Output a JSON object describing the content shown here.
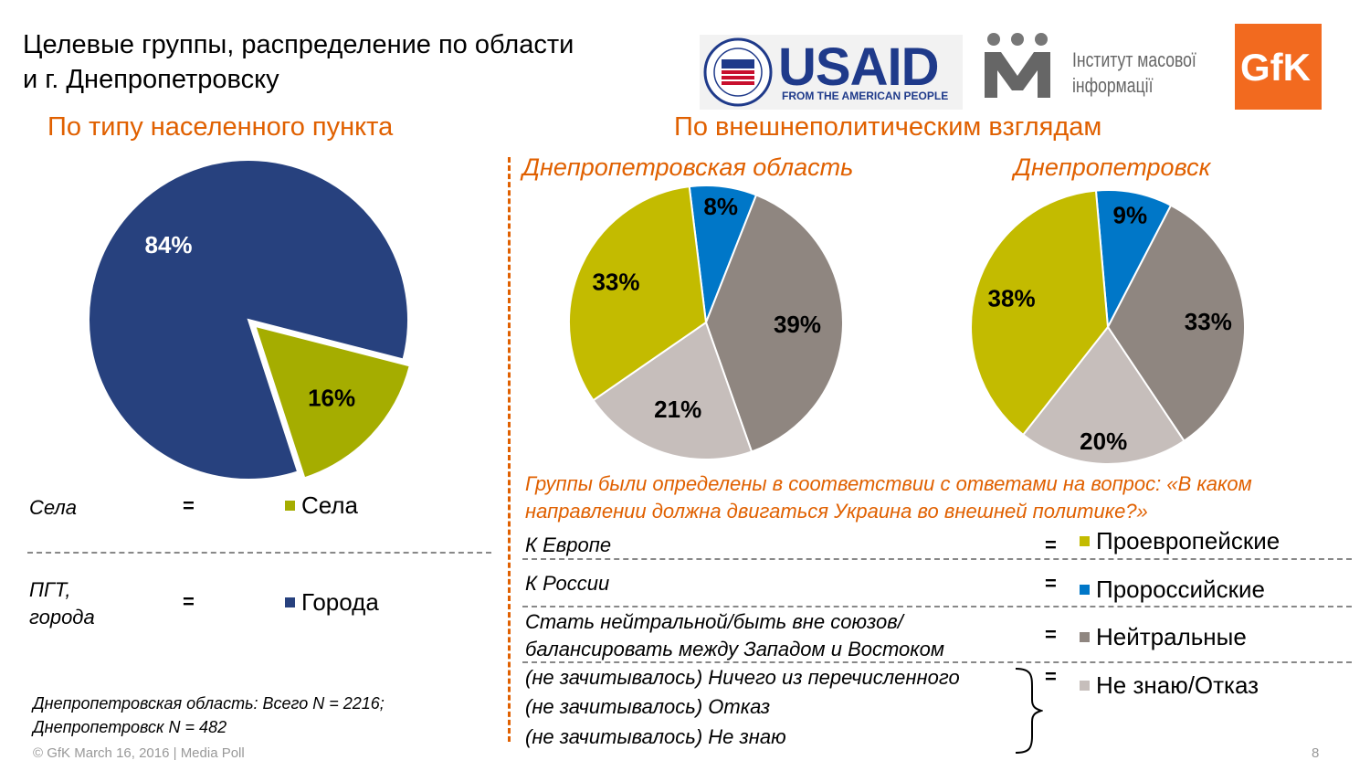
{
  "title": "Целевые группы, распределение по области\nи г. Днепропетровску",
  "logos": {
    "usaid_word": "USAID",
    "usaid_tagline": "FROM THE AMERICAN PEOPLE",
    "imi_text": "Інститут масової\nінформації",
    "gfk_word": "GfK"
  },
  "sections": {
    "left": "По типу населенного пункта",
    "right": "По внешнеполитическим взглядам",
    "oblast": "Днепропетровская область",
    "city": "Днепропетровск"
  },
  "colors": {
    "accent": "#e06000",
    "cities": "#27417e",
    "villages": "#a5ad00",
    "pro_europe": "#c3bb00",
    "pro_russia": "#0077c8",
    "neutral": "#8f8680",
    "dont_know": "#c6bebb"
  },
  "left_legend": [
    {
      "label": "Села",
      "eq": "=",
      "legend": "Села",
      "color": "#a5ad00"
    },
    {
      "label": "ПГТ,\nгорода",
      "eq": "=",
      "legend": "Города",
      "color": "#27417e"
    }
  ],
  "question": "Группы были определены в соответствии с ответами на вопрос: «В каком направлении должна двигаться Украина во внешней политике?»",
  "right_legend": [
    {
      "label": "К Европе",
      "eq": "=",
      "legend": "Проевропейские",
      "color": "#c3bb00"
    },
    {
      "label": "К России",
      "eq": "=",
      "legend": "Пророссийские",
      "color": "#0077c8"
    },
    {
      "label": "Стать нейтральной/быть вне союзов/\nбалансировать между Западом и Востоком",
      "eq": "=",
      "legend": "Нейтральные",
      "color": "#8f8680"
    },
    {
      "label": "(не зачитывалось) Ничего из перечисленного",
      "eq": "=",
      "legend": "Не знаю/Отказ",
      "color": "#c6bebb"
    }
  ],
  "extra_labels": [
    "(не зачитывалось) Отказ",
    "(не зачитывалось) Не знаю"
  ],
  "footnote": "Днепропетровская область: Всего N = 2216;\nДнепропетровск N = 482",
  "copyright": "© GfK March 16, 2016 | Media Poll",
  "page_number": "8",
  "chart_data": [
    {
      "type": "pie",
      "title": "По типу населенного пункта",
      "categories": [
        "Города",
        "Села"
      ],
      "values": [
        84,
        16
      ],
      "labels": [
        "84%",
        "16%"
      ],
      "colors": [
        "#27417e",
        "#a5ad00"
      ]
    },
    {
      "type": "pie",
      "title": "Днепропетровская область",
      "categories": [
        "Пророссийские",
        "Нейтральные",
        "Не знаю/Отказ",
        "Проевропейские"
      ],
      "values": [
        8,
        39,
        21,
        33
      ],
      "labels": [
        "8%",
        "39%",
        "21%",
        "33%"
      ],
      "colors": [
        "#0077c8",
        "#8f8680",
        "#c6bebb",
        "#c3bb00"
      ]
    },
    {
      "type": "pie",
      "title": "Днепропетровск",
      "categories": [
        "Пророссийские",
        "Нейтральные",
        "Не знаю/Отказ",
        "Проевропейские"
      ],
      "values": [
        9,
        33,
        20,
        38
      ],
      "labels": [
        "9%",
        "33%",
        "20%",
        "38%"
      ],
      "colors": [
        "#0077c8",
        "#8f8680",
        "#c6bebb",
        "#c3bb00"
      ]
    }
  ]
}
